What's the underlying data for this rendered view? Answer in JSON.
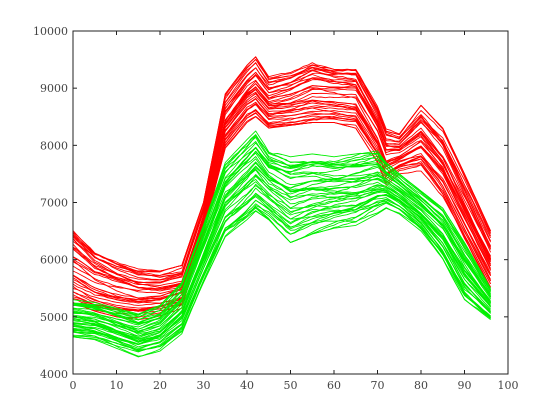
{
  "chart_data": {
    "type": "line",
    "title": "",
    "xlabel": "",
    "ylabel": "",
    "xlim": [
      0,
      100
    ],
    "ylim": [
      4000,
      10000
    ],
    "grid": false,
    "xticks": [
      "0",
      "10",
      "20",
      "30",
      "40",
      "50",
      "60",
      "70",
      "80",
      "90",
      "100"
    ],
    "yticks": [
      "4000",
      "5000",
      "6000",
      "7000",
      "8000",
      "9000",
      "10000"
    ],
    "x": [
      0,
      5,
      10,
      15,
      20,
      25,
      30,
      35,
      40,
      42,
      45,
      50,
      55,
      60,
      65,
      70,
      72,
      75,
      80,
      85,
      90,
      96
    ],
    "series": [
      {
        "color": "#ff0000",
        "count": 40,
        "upper": [
          6600,
          6200,
          6000,
          5850,
          5800,
          5900,
          7000,
          8900,
          9400,
          9550,
          9200,
          9300,
          9500,
          9400,
          9400,
          8700,
          8300,
          8200,
          8700,
          8300,
          7500,
          6500
        ],
        "lower": [
          5250,
          5100,
          5000,
          4950,
          5000,
          5100,
          6400,
          7900,
          8400,
          8500,
          8300,
          8350,
          8400,
          8400,
          8300,
          7700,
          7300,
          7500,
          7500,
          7000,
          6300,
          5500
        ]
      },
      {
        "color": "#00ee00",
        "count": 45,
        "upper": [
          5300,
          5250,
          5150,
          5050,
          5200,
          5600,
          6600,
          7700,
          8100,
          8250,
          7900,
          7800,
          7850,
          7800,
          7850,
          7900,
          7700,
          7500,
          7200,
          6900,
          6300,
          5500
        ],
        "lower": [
          4650,
          4600,
          4450,
          4300,
          4400,
          4700,
          5600,
          6400,
          6700,
          6850,
          6700,
          6300,
          6450,
          6550,
          6600,
          6800,
          6900,
          6800,
          6500,
          6000,
          5300,
          4950
        ]
      }
    ]
  }
}
